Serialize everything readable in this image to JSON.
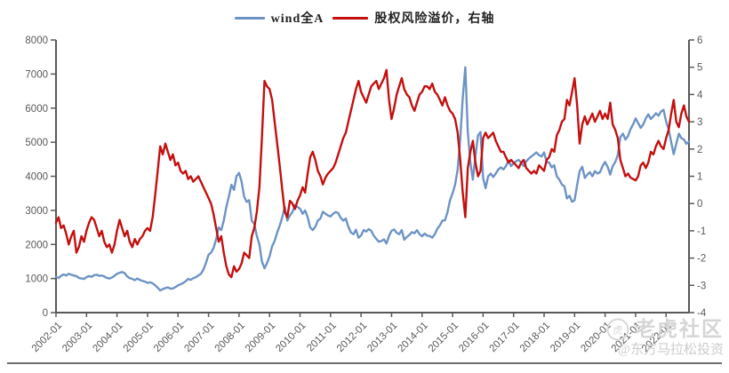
{
  "legend": [
    {
      "label": "wind全A",
      "color": "#6d93c5",
      "axis": "left"
    },
    {
      "label": "股权风险溢价，右轴",
      "color": "#c3100f",
      "axis": "right"
    }
  ],
  "watermark": {
    "logo": "tiger-circle-icon",
    "logo_glyph": "虎",
    "brand": "老虎社区",
    "user": "@东方马拉松投资"
  },
  "style": {
    "axis_color": "#595959",
    "label_color": "#595959",
    "background": "#ffffff"
  },
  "chart_data": {
    "type": "line",
    "title": "",
    "xlabel": "",
    "ylabel_left": "",
    "ylabel_right": "",
    "grid": false,
    "legend_position": "top-center",
    "x_frequency": "monthly",
    "x_start": "2002-01",
    "x_end": "2022-10",
    "x_tick_labels": [
      "2002-01",
      "2003-01",
      "2004-01",
      "2005-01",
      "2006-01",
      "2007-01",
      "2008-01",
      "2009-01",
      "2010-01",
      "2011-01",
      "2012-01",
      "2013-01",
      "2014-01",
      "2015-01",
      "2016-01",
      "2017-01",
      "2018-01",
      "2019-01",
      "2020-01",
      "2021-01",
      "2022-01"
    ],
    "left_axis": {
      "min": 0,
      "max": 8000,
      "step": 1000,
      "ticks": [
        0,
        1000,
        2000,
        3000,
        4000,
        5000,
        6000,
        7000,
        8000
      ]
    },
    "right_axis": {
      "min": -4,
      "max": 6,
      "step": 1,
      "ticks": [
        -4,
        -3,
        -2,
        -1,
        0,
        1,
        2,
        3,
        4,
        5,
        6
      ]
    },
    "series": [
      {
        "name": "wind全A",
        "axis": "left",
        "color": "#6d93c5",
        "values": [
          1050,
          1020,
          1080,
          1120,
          1090,
          1140,
          1110,
          1090,
          1070,
          1020,
          1000,
          990,
          1040,
          1070,
          1050,
          1100,
          1110,
          1080,
          1090,
          1060,
          1020,
          1000,
          1030,
          1080,
          1140,
          1170,
          1190,
          1160,
          1060,
          1010,
          990,
          950,
          1000,
          960,
          930,
          910,
          870,
          890,
          860,
          800,
          730,
          650,
          690,
          720,
          740,
          700,
          710,
          750,
          800,
          830,
          870,
          920,
          990,
          960,
          1010,
          1040,
          1090,
          1140,
          1260,
          1460,
          1700,
          1760,
          1900,
          2150,
          2500,
          2420,
          2700,
          3100,
          3400,
          3750,
          3600,
          4000,
          4100,
          3850,
          3400,
          3250,
          3300,
          2700,
          2600,
          2250,
          2000,
          1500,
          1300,
          1450,
          1650,
          1950,
          2100,
          2350,
          2550,
          2800,
          3100,
          2700,
          2850,
          2950,
          3150,
          3100,
          3050,
          2900,
          3000,
          2800,
          2500,
          2420,
          2520,
          2700,
          2760,
          2960,
          2900,
          2850,
          2820,
          2900,
          2950,
          2920,
          2780,
          2700,
          2760,
          2520,
          2350,
          2300,
          2430,
          2200,
          2260,
          2420,
          2380,
          2450,
          2400,
          2260,
          2160,
          2080,
          2100,
          2150,
          2030,
          2250,
          2400,
          2440,
          2340,
          2300,
          2420,
          2140,
          2220,
          2280,
          2360,
          2330,
          2420,
          2300,
          2240,
          2320,
          2260,
          2250,
          2200,
          2300,
          2460,
          2560,
          2700,
          2710,
          2950,
          3300,
          3500,
          3750,
          4200,
          5100,
          6300,
          7200,
          5300,
          4400,
          3900,
          4600,
          5200,
          5300,
          3950,
          3650,
          4000,
          4080,
          3980,
          4080,
          4200,
          4260,
          4200,
          4300,
          4460,
          4300,
          4380,
          4440,
          4480,
          4400,
          4300,
          4440,
          4520,
          4580,
          4640,
          4700,
          4620,
          4580,
          4700,
          4420,
          4400,
          4260,
          4320,
          4000,
          3900,
          3760,
          3700,
          3350,
          3430,
          3250,
          3300,
          3750,
          4150,
          4280,
          3950,
          4050,
          4120,
          4000,
          4150,
          4080,
          4120,
          4300,
          4420,
          4280,
          4050,
          4300,
          4420,
          4620,
          5150,
          5250,
          5080,
          5180,
          5380,
          5520,
          5700,
          5560,
          5420,
          5520,
          5700,
          5820,
          5680,
          5760,
          5850,
          5780,
          5900,
          5950,
          5600,
          5380,
          5000,
          4650,
          4950,
          5250,
          5120,
          5080,
          4950,
          5020
        ]
      },
      {
        "name": "股权风险溢价，右轴",
        "axis": "right",
        "color": "#c3100f",
        "values": [
          -0.7,
          -0.5,
          -0.9,
          -0.8,
          -1.1,
          -1.5,
          -1.2,
          -1.0,
          -1.8,
          -1.6,
          -1.2,
          -1.4,
          -1.0,
          -0.7,
          -0.5,
          -0.6,
          -0.9,
          -1.2,
          -1.0,
          -1.4,
          -1.6,
          -1.5,
          -1.8,
          -1.5,
          -1.0,
          -0.6,
          -0.9,
          -1.2,
          -1.0,
          -1.4,
          -1.6,
          -1.3,
          -1.5,
          -1.3,
          -1.2,
          -1.0,
          -0.9,
          -1.0,
          -0.5,
          0.3,
          1.2,
          2.1,
          1.8,
          2.2,
          1.9,
          1.6,
          1.8,
          1.4,
          1.5,
          1.2,
          1.1,
          1.2,
          0.9,
          1.0,
          0.8,
          0.9,
          1.0,
          0.8,
          0.6,
          0.4,
          0.2,
          0.0,
          -0.4,
          -0.9,
          -1.4,
          -1.2,
          -1.8,
          -2.3,
          -2.6,
          -2.7,
          -2.3,
          -2.5,
          -2.4,
          -2.2,
          -1.8,
          -1.9,
          -2.0,
          -1.2,
          -0.9,
          -0.3,
          0.6,
          2.4,
          4.5,
          4.3,
          4.2,
          3.8,
          3.0,
          2.2,
          1.4,
          0.5,
          -0.3,
          -0.5,
          0.1,
          0.0,
          -0.2,
          0.1,
          0.3,
          0.6,
          0.4,
          1.1,
          1.7,
          1.9,
          1.6,
          1.2,
          1.0,
          0.7,
          0.95,
          1.1,
          1.2,
          1.3,
          1.5,
          1.8,
          2.1,
          2.4,
          2.6,
          3.0,
          3.4,
          3.8,
          4.2,
          4.5,
          4.1,
          3.9,
          3.7,
          4.0,
          4.3,
          4.4,
          4.5,
          4.2,
          4.4,
          4.6,
          4.9,
          3.8,
          3.1,
          3.5,
          4.0,
          4.3,
          4.6,
          4.2,
          4.0,
          3.9,
          3.6,
          3.4,
          3.7,
          4.0,
          4.1,
          4.3,
          4.3,
          4.2,
          4.4,
          4.1,
          4.0,
          3.8,
          3.6,
          3.9,
          3.6,
          3.4,
          3.3,
          3.1,
          2.6,
          1.6,
          0.4,
          -0.5,
          1.3,
          1.9,
          2.3,
          1.5,
          1.0,
          1.2,
          2.4,
          2.6,
          2.4,
          2.5,
          2.6,
          2.3,
          2.1,
          1.9,
          1.9,
          1.7,
          1.5,
          1.6,
          1.5,
          1.4,
          1.3,
          1.5,
          1.6,
          1.3,
          1.2,
          1.1,
          1.2,
          1.1,
          1.4,
          1.3,
          1.2,
          1.6,
          1.7,
          2.0,
          1.9,
          2.5,
          2.7,
          3.0,
          3.1,
          3.8,
          3.6,
          4.1,
          4.6,
          3.6,
          2.2,
          2.9,
          3.2,
          2.9,
          3.1,
          3.3,
          3.0,
          3.2,
          3.4,
          3.1,
          3.3,
          3.1,
          3.7,
          2.9,
          2.7,
          2.4,
          1.6,
          1.3,
          1.0,
          1.1,
          0.95,
          0.9,
          0.85,
          1.0,
          1.4,
          1.5,
          1.3,
          1.5,
          1.9,
          1.8,
          2.1,
          2.3,
          2.1,
          2.0,
          2.4,
          2.7,
          3.3,
          3.8,
          3.0,
          2.8,
          3.3,
          3.6,
          3.2,
          3.0
        ]
      }
    ]
  }
}
